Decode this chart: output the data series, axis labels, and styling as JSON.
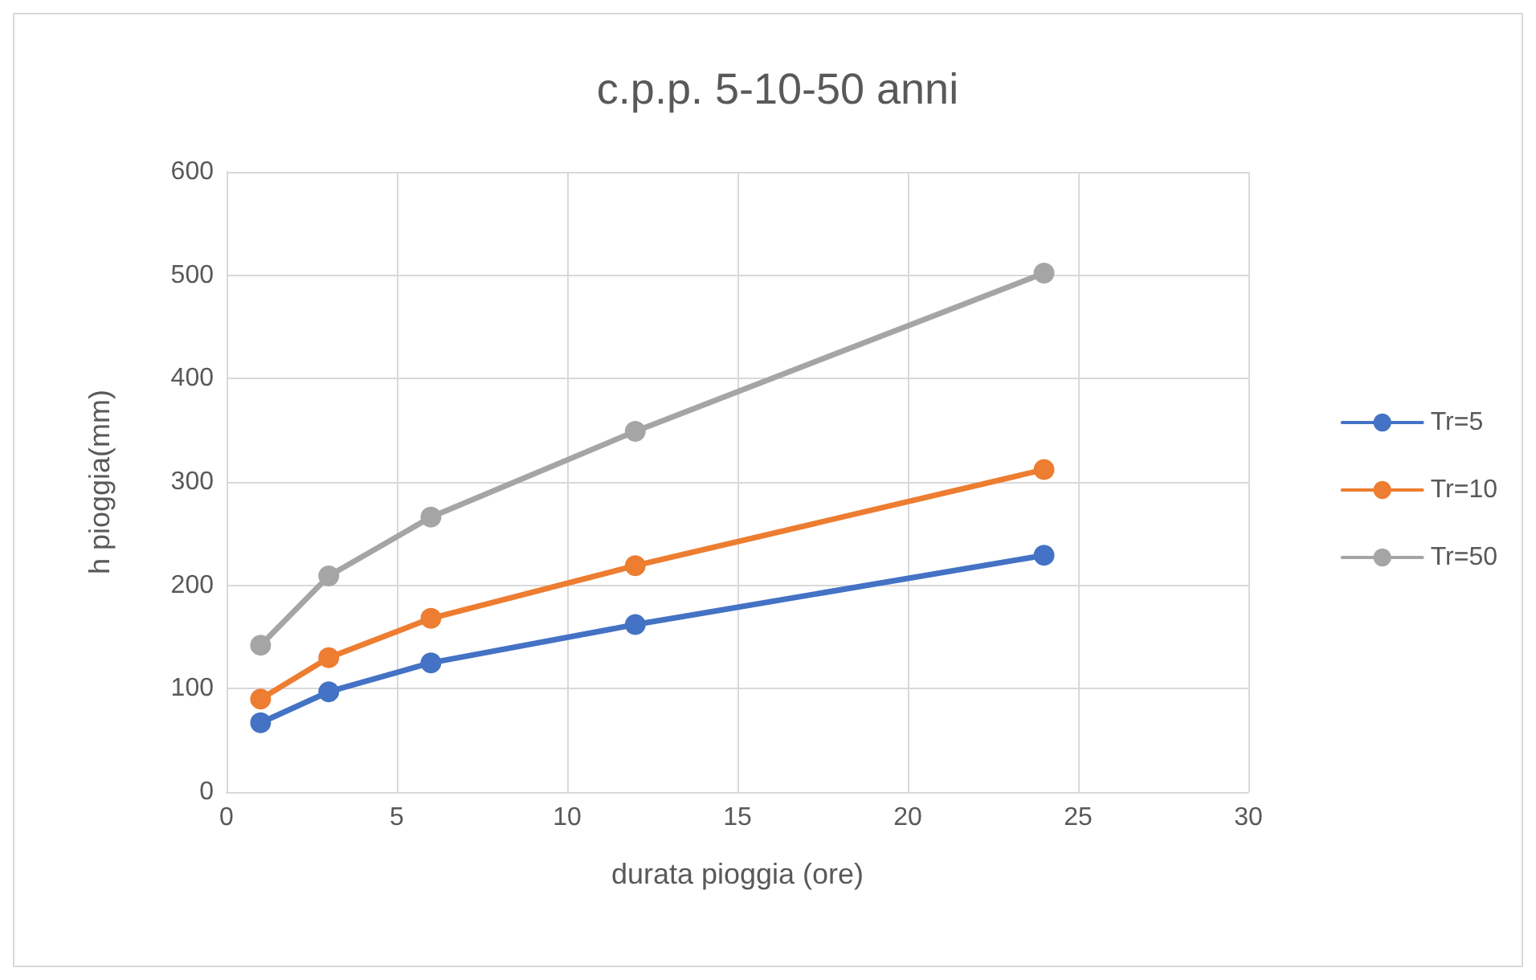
{
  "chart_data": {
    "type": "line",
    "title": "c.p.p. 5-10-50 anni",
    "xlabel": "durata pioggia (ore)",
    "ylabel": "h pioggia(mm)",
    "x": [
      1,
      3,
      6,
      12,
      24
    ],
    "series": [
      {
        "name": "Tr=5",
        "color": "#4472c4",
        "values": [
          67,
          97,
          125,
          162,
          229
        ]
      },
      {
        "name": "Tr=10",
        "color": "#ed7d31",
        "values": [
          90,
          130,
          168,
          219,
          312
        ]
      },
      {
        "name": "Tr=50",
        "color": "#a5a5a5",
        "values": [
          142,
          209,
          266,
          349,
          502
        ]
      }
    ],
    "xlim": [
      0,
      30
    ],
    "xticks": [
      0,
      5,
      10,
      15,
      20,
      25,
      30
    ],
    "ylim": [
      0,
      600
    ],
    "yticks": [
      0,
      100,
      200,
      300,
      400,
      500,
      600
    ],
    "grid": true,
    "legend": "right",
    "marker": "circle",
    "line_style": "solid"
  }
}
